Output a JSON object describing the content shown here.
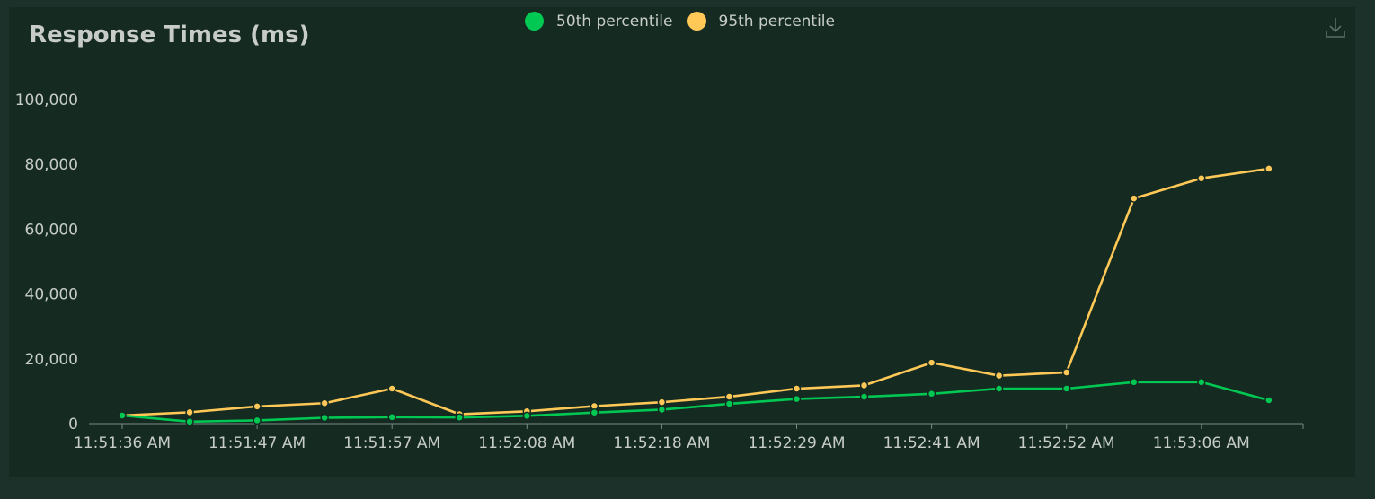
{
  "colors": {
    "p50": "#00c853",
    "p95": "#ffc857",
    "axis_text": "#c7ccc9",
    "axis_line": "#7b8a84"
  },
  "icons": {
    "download": "download-icon"
  },
  "chart_data": {
    "type": "line",
    "title": "Response Times (ms)",
    "xlabel": "",
    "ylabel": "",
    "ylim": [
      0,
      100000
    ],
    "y_ticks": [
      "0",
      "20,000",
      "40,000",
      "60,000",
      "80,000",
      "100,000"
    ],
    "x_tick_labels": [
      "11:51:36 AM",
      "11:51:47 AM",
      "11:51:57 AM",
      "11:52:08 AM",
      "11:52:18 AM",
      "11:52:29 AM",
      "11:52:41 AM",
      "11:52:52 AM",
      "11:53:06 AM"
    ],
    "legend_position": "top-center",
    "grid": false,
    "series": [
      {
        "name": "50th percentile",
        "values": [
          2500,
          600,
          1000,
          1800,
          2000,
          1900,
          2400,
          3400,
          4300,
          6100,
          7600,
          8300,
          9200,
          10800,
          10800,
          12800,
          12800,
          7200
        ]
      },
      {
        "name": "95th percentile",
        "values": [
          2500,
          3500,
          5300,
          6300,
          10800,
          2900,
          3800,
          5400,
          6600,
          8300,
          10800,
          11800,
          18800,
          14800,
          15800,
          69500,
          75700,
          78700
        ]
      }
    ]
  }
}
